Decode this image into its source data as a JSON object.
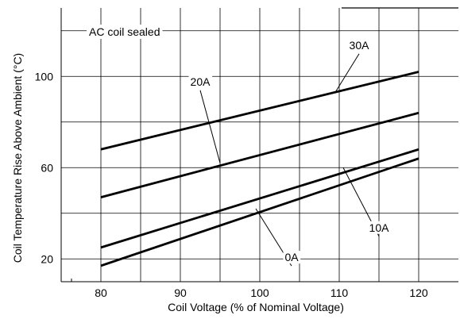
{
  "chart_data": {
    "type": "line",
    "title": "",
    "annotation": "AC coil sealed",
    "xlabel": "Coil Voltage (% of Nominal Voltage)",
    "ylabel": "Coil Temperature Rise Above Ambient (°C)",
    "xlim": [
      75,
      125
    ],
    "ylim": [
      10,
      130
    ],
    "x_ticks": [
      "80",
      "90",
      "100",
      "110",
      "120"
    ],
    "y_ticks": [
      "20",
      "60",
      "100"
    ],
    "x_tick_values": [
      80,
      90,
      100,
      110,
      120
    ],
    "y_tick_values": [
      20,
      60,
      100
    ],
    "x_grid": [
      80,
      85,
      90,
      95,
      100,
      105,
      110,
      115,
      120
    ],
    "y_grid": [
      20,
      40,
      60,
      80,
      100,
      120
    ],
    "grid": true,
    "series": [
      {
        "name": "30A",
        "x": [
          80,
          120
        ],
        "y": [
          68,
          102
        ]
      },
      {
        "name": "20A",
        "x": [
          80,
          120
        ],
        "y": [
          47,
          84
        ]
      },
      {
        "name": "10A",
        "x": [
          80,
          120
        ],
        "y": [
          25,
          68
        ]
      },
      {
        "name": "0A",
        "x": [
          80,
          120
        ],
        "y": [
          17,
          64
        ]
      }
    ],
    "series_labels": [
      {
        "name": "30A",
        "at": [
          112.5,
          112
        ],
        "leader_to": [
          109.5,
          93
        ]
      },
      {
        "name": "20A",
        "at": [
          92.5,
          96
        ],
        "leader_to": [
          95,
          62
        ]
      },
      {
        "name": "10A",
        "at": [
          115,
          32
        ],
        "leader_to": [
          110.5,
          60
        ]
      },
      {
        "name": "0A",
        "at": [
          104,
          19
        ],
        "leader_to": [
          99.5,
          42
        ]
      }
    ]
  }
}
